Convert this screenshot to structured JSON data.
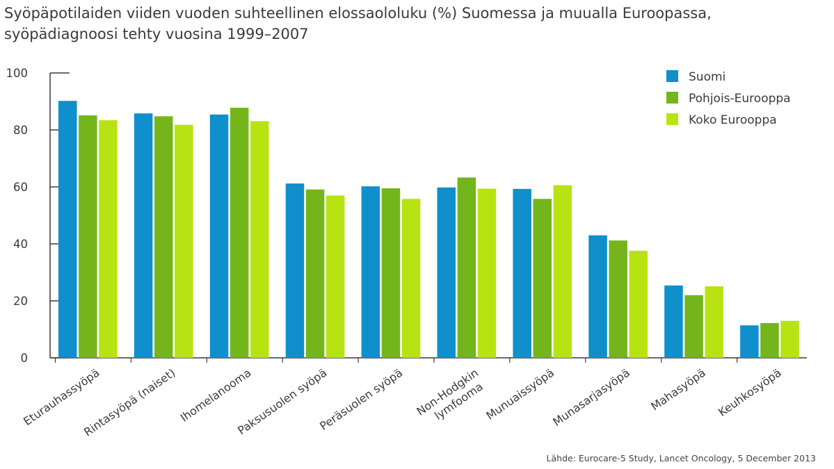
{
  "chart_data": {
    "type": "bar",
    "title_lines": [
      "Syöpäpotilaiden viiden vuoden suhteellinen elossaololuku (%) Suomessa ja muualla Euroopassa,",
      "syöpädiagnoosi tehty vuosina 1999–2007"
    ],
    "categories": [
      [
        "Eturauhassyöpä"
      ],
      [
        "Rintasyöpä (naiset)"
      ],
      [
        "Ihomelanooma"
      ],
      [
        "Paksusuolen syöpä"
      ],
      [
        "Peräsuolen syöpä"
      ],
      [
        "Non-Hodgkin",
        "lymfooma"
      ],
      [
        "Munuaissyöpä"
      ],
      [
        "Munasarjasyöpä"
      ],
      [
        "Mahasyöpä"
      ],
      [
        "Keuhkosyöpä"
      ]
    ],
    "series": [
      {
        "name": "Suomi",
        "color": "#0f8fcb",
        "values": [
          90.2,
          85.8,
          85.4,
          61.2,
          60.2,
          59.8,
          59.3,
          43.0,
          25.4,
          11.4
        ]
      },
      {
        "name": "Pohjois-Eurooppa",
        "color": "#74b51b",
        "values": [
          85.1,
          84.8,
          87.8,
          59.1,
          59.5,
          63.3,
          55.8,
          41.2,
          22.0,
          12.2
        ]
      },
      {
        "name": "Koko Eurooppa",
        "color": "#b8e312",
        "values": [
          83.4,
          81.8,
          83.1,
          57.0,
          55.8,
          59.4,
          60.6,
          37.6,
          25.1,
          13.0
        ]
      }
    ],
    "ylim": [
      0,
      100
    ],
    "yticks": [
      0,
      20,
      40,
      60,
      80,
      100
    ],
    "grid": false,
    "legend_position": "top-right",
    "source": "Lähde: Eurocare-5 Study, Lancet Oncology, 5 December 2013"
  }
}
